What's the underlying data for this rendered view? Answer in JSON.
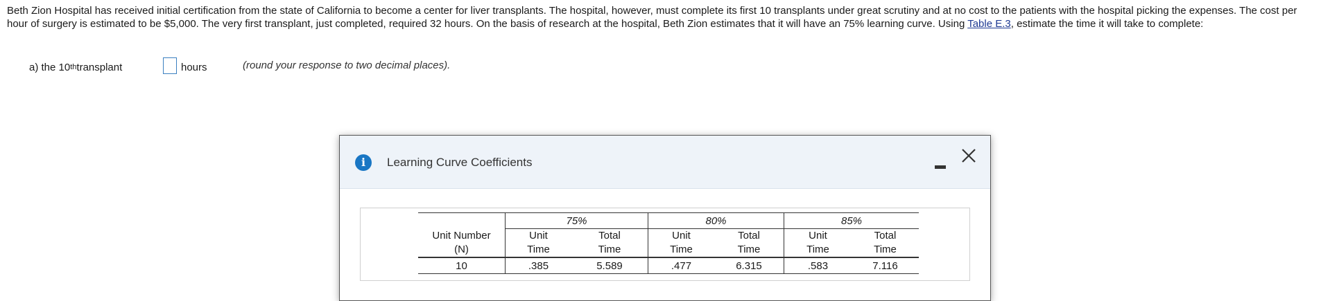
{
  "problem": {
    "text_before_link": "Beth Zion Hospital has received initial certification from the state of California to become a center for liver transplants.  The hospital, however, must complete its first 10 transplants under great scrutiny and at no cost to the patients with the hospital picking the expenses.  The cost per hour of surgery is estimated to be $5,000.  The very first transplant, just completed, required 32 hours. On the basis of research at the hospital, Beth Zion estimates that it will have an 75% learning curve. Using ",
    "link_text": "Table E.3",
    "text_after_link": ", estimate the time it will take to complete:"
  },
  "question": {
    "prefix": "a) the 10",
    "superscript": "th",
    "suffix": " transplant",
    "answer_value": "",
    "unit": "hours",
    "note": "(round your response to two decimal places)."
  },
  "dialog": {
    "title": "Learning Curve Coefficients",
    "info_icon_glyph": "i",
    "icons": [
      "info-icon",
      "minimize-icon",
      "close-icon"
    ],
    "table": {
      "group_headers": [
        "75%",
        "80%",
        "85%"
      ],
      "col_headers": {
        "unit_number_line1": "Unit Number",
        "unit_number_line2": "(N)",
        "unit_line1": "Unit",
        "unit_line2": "Time",
        "total_line1": "Total",
        "total_line2": "Time"
      },
      "rows": [
        {
          "n": "10",
          "unit_75": ".385",
          "total_75": "5.589",
          "unit_80": ".477",
          "total_80": "6.315",
          "unit_85": ".583",
          "total_85": "7.116"
        }
      ]
    }
  },
  "colors": {
    "link": "#1f3a93",
    "info_icon": "#1976c4",
    "header_bg": "#eef3f9",
    "input_border": "#3a7fc0"
  }
}
